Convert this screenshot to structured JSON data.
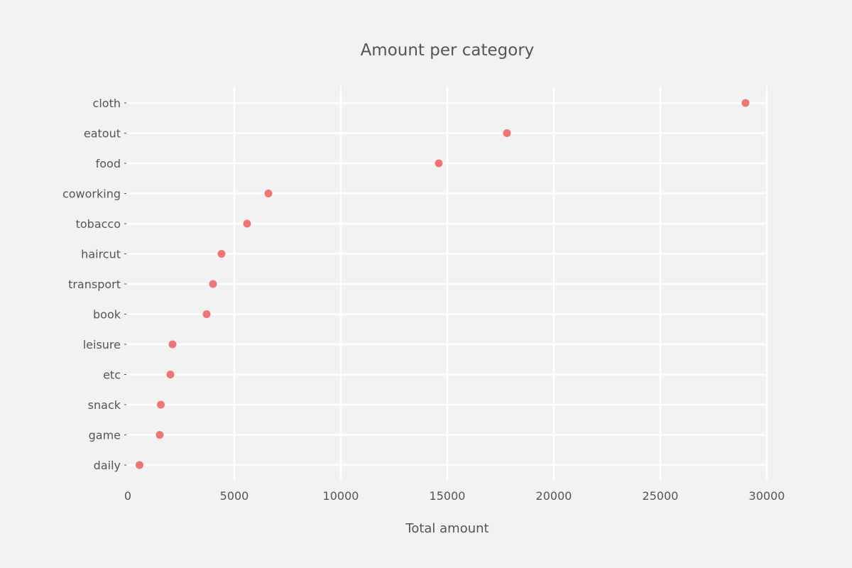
{
  "chart_data": {
    "type": "scatter",
    "title": "Amount per category",
    "xlabel": "Total amount",
    "ylabel": "",
    "xlim": [
      0,
      30000
    ],
    "xticks": [
      0,
      5000,
      10000,
      15000,
      20000,
      25000,
      30000
    ],
    "categories": [
      "cloth",
      "eatout",
      "food",
      "coworking",
      "tobacco",
      "haircut",
      "transport",
      "book",
      "leisure",
      "etc",
      "snack",
      "game",
      "daily"
    ],
    "values": [
      29000,
      17800,
      14600,
      6600,
      5600,
      4400,
      4000,
      3700,
      2100,
      2000,
      1550,
      1500,
      550
    ],
    "grid": true,
    "legend": false,
    "colors": {
      "background": "#f2f2f2",
      "point": "#f07575",
      "grid": "#ffffff",
      "text": "#555555"
    }
  }
}
